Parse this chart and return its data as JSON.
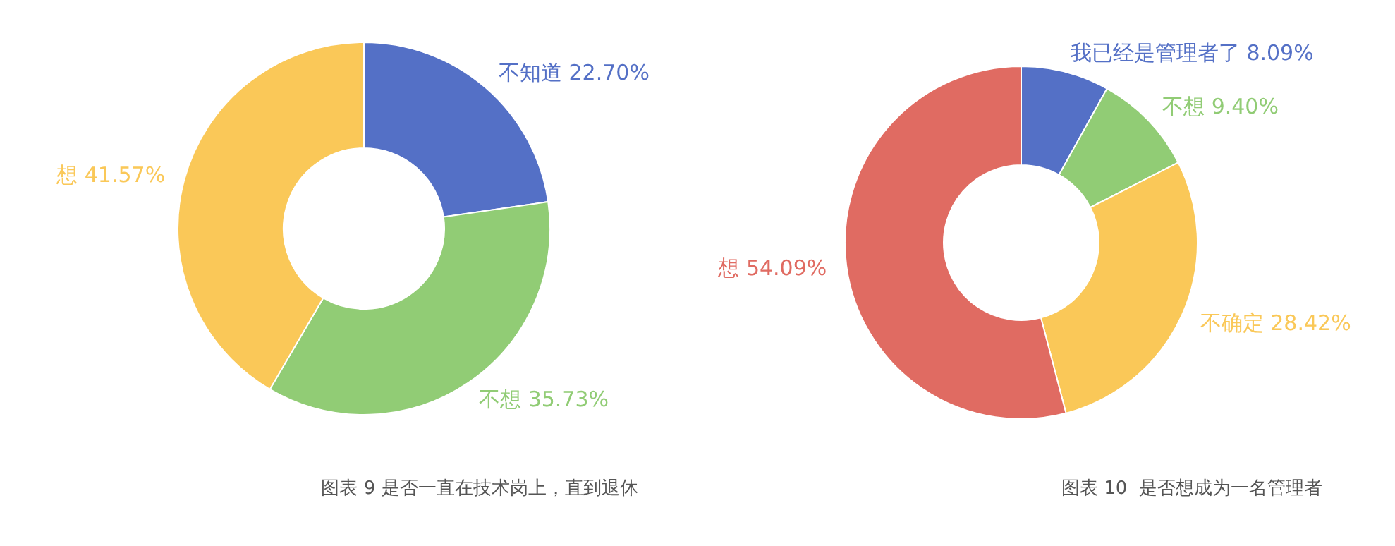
{
  "chart_data": [
    {
      "type": "donut",
      "title": "图表 9 是否一直在技术岗上，直到退休",
      "categories": [
        "不知道",
        "不想",
        "想"
      ],
      "values": [
        22.7,
        35.73,
        41.57
      ],
      "value_labels": [
        "22.70%",
        "35.73%",
        "41.57%"
      ],
      "colors": [
        "#5470c6",
        "#91cc75",
        "#fac858"
      ]
    },
    {
      "type": "donut",
      "title": "图表 10  是否想成为一名管理者",
      "categories": [
        "我已经是管理者了",
        "不想",
        "不确定",
        "想"
      ],
      "values": [
        8.09,
        9.4,
        28.42,
        54.09
      ],
      "value_labels": [
        "8.09%",
        "9.40%",
        "28.42%",
        "54.09%"
      ],
      "colors": [
        "#5470c6",
        "#91cc75",
        "#fac858",
        "#e06b62"
      ]
    }
  ]
}
